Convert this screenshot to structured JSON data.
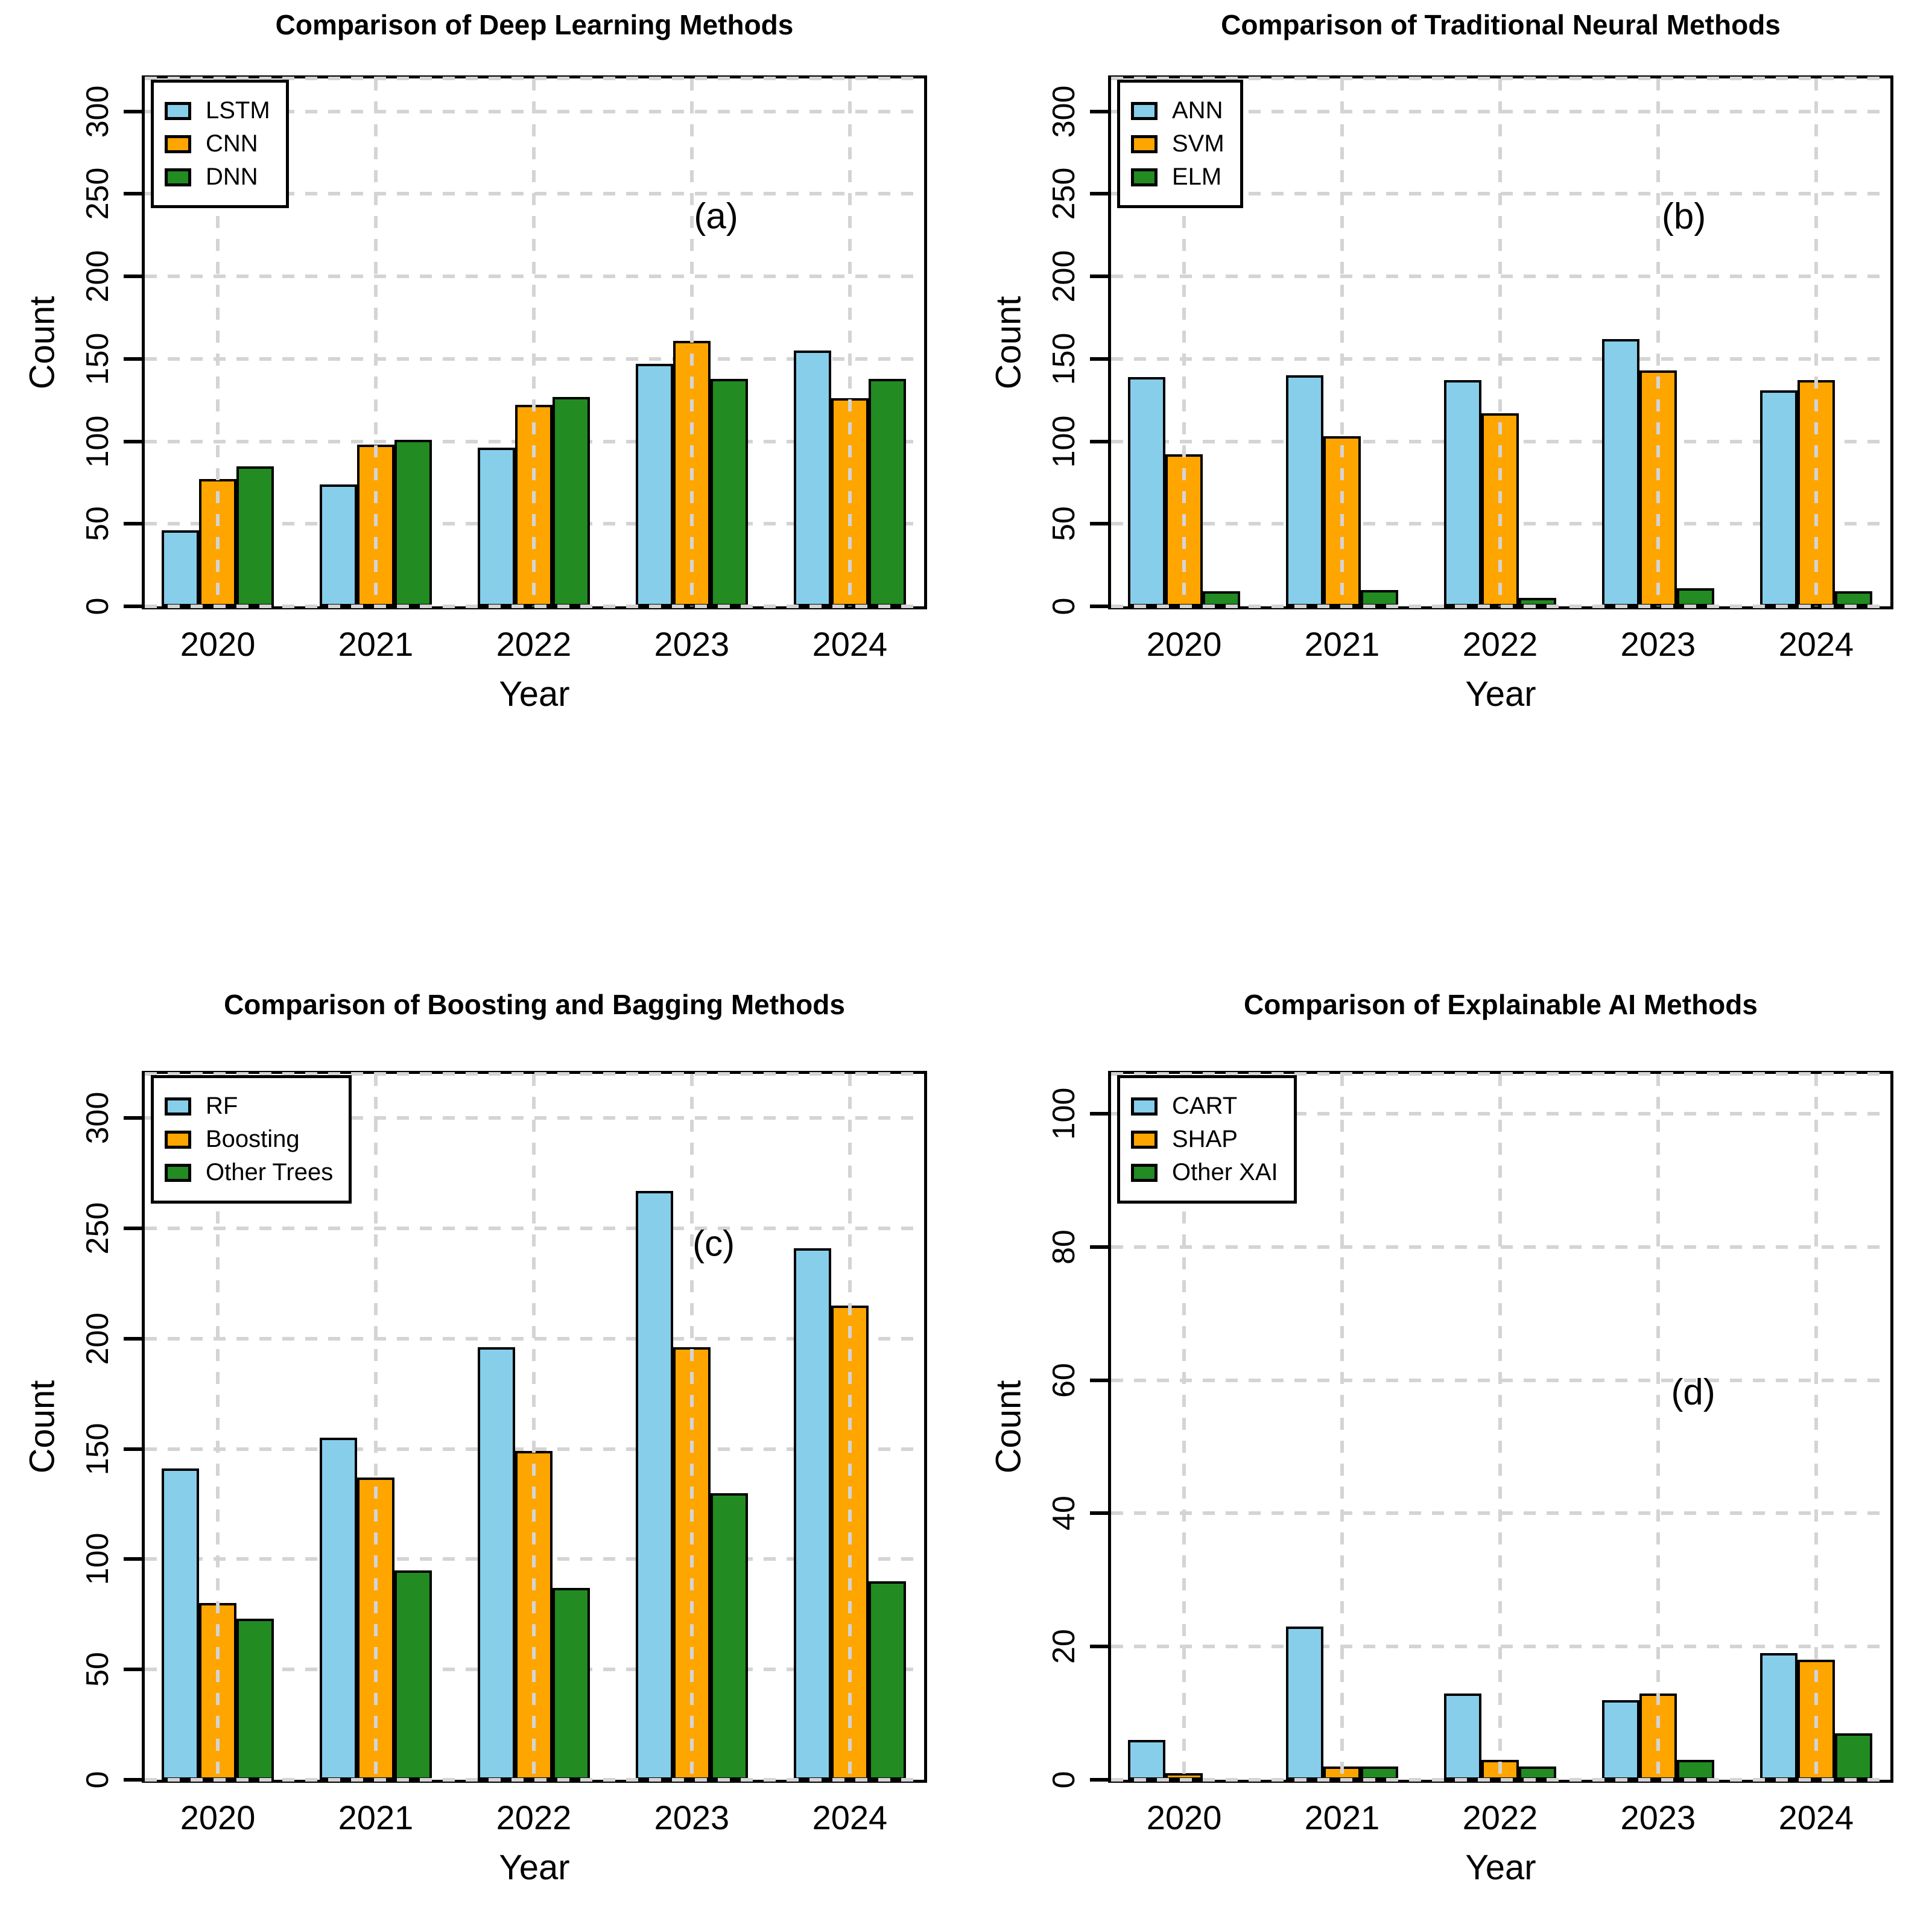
{
  "figure": {
    "background": "#ffffff",
    "grid_color": "#d4d4d4",
    "bar_border_color": "#000000",
    "series_colors": [
      "#87CEEB",
      "#FFA500",
      "#228B22"
    ]
  },
  "chart_data": [
    {
      "type": "bar",
      "panel_label": "(a)",
      "title": "Comparison of Deep Learning Methods",
      "xlabel": "Year",
      "ylabel": "Count",
      "ylim": [
        0,
        300
      ],
      "ymax_display": 320,
      "yticks": [
        0,
        50,
        100,
        150,
        200,
        250,
        300
      ],
      "grid": true,
      "legend_position": "top-left",
      "categories": [
        "2020",
        "2021",
        "2022",
        "2023",
        "2024"
      ],
      "series": [
        {
          "name": "LSTM",
          "color": "#87CEEB",
          "values": [
            46,
            74,
            96,
            147,
            155
          ]
        },
        {
          "name": "CNN",
          "color": "#FFA500",
          "values": [
            77,
            98,
            122,
            161,
            126
          ]
        },
        {
          "name": "DNN",
          "color": "#228B22",
          "values": [
            85,
            101,
            127,
            138,
            138
          ]
        }
      ],
      "letter_pos": {
        "x_frac": 0.733,
        "y_frac": 0.26
      }
    },
    {
      "type": "bar",
      "panel_label": "(b)",
      "title": "Comparison of Traditional Neural Methods",
      "xlabel": "Year",
      "ylabel": "Count",
      "ylim": [
        0,
        300
      ],
      "ymax_display": 320,
      "yticks": [
        0,
        50,
        100,
        150,
        200,
        250,
        300
      ],
      "grid": true,
      "legend_position": "top-left",
      "categories": [
        "2020",
        "2021",
        "2022",
        "2023",
        "2024"
      ],
      "series": [
        {
          "name": "ANN",
          "color": "#87CEEB",
          "values": [
            139,
            140,
            137,
            162,
            131
          ]
        },
        {
          "name": "SVM",
          "color": "#FFA500",
          "values": [
            92,
            103,
            117,
            143,
            137
          ]
        },
        {
          "name": "ELM",
          "color": "#228B22",
          "values": [
            9,
            10,
            5,
            11,
            9
          ]
        }
      ],
      "letter_pos": {
        "x_frac": 0.735,
        "y_frac": 0.26
      }
    },
    {
      "type": "bar",
      "panel_label": "(c)",
      "title": "Comparison of Boosting and Bagging Methods",
      "xlabel": "Year",
      "ylabel": "Count",
      "ylim": [
        0,
        300
      ],
      "ymax_display": 320,
      "yticks": [
        0,
        50,
        100,
        150,
        200,
        250,
        300
      ],
      "grid": true,
      "legend_position": "top-left",
      "categories": [
        "2020",
        "2021",
        "2022",
        "2023",
        "2024"
      ],
      "series": [
        {
          "name": "RF",
          "color": "#87CEEB",
          "values": [
            141,
            155,
            196,
            267,
            241
          ]
        },
        {
          "name": "Boosting",
          "color": "#FFA500",
          "values": [
            80,
            137,
            149,
            196,
            215
          ]
        },
        {
          "name": "Other Trees",
          "color": "#228B22",
          "values": [
            73,
            95,
            87,
            130,
            90
          ]
        }
      ],
      "letter_pos": {
        "x_frac": 0.73,
        "y_frac": 0.24
      }
    },
    {
      "type": "bar",
      "panel_label": "(d)",
      "title": "Comparison of Explainable AI Methods",
      "xlabel": "Year",
      "ylabel": "Count",
      "ylim": [
        0,
        100
      ],
      "ymax_display": 106,
      "yticks": [
        0,
        20,
        40,
        60,
        80,
        100
      ],
      "grid": true,
      "legend_position": "top-left",
      "categories": [
        "2020",
        "2021",
        "2022",
        "2023",
        "2024"
      ],
      "series": [
        {
          "name": "CART",
          "color": "#87CEEB",
          "values": [
            6,
            23,
            13,
            12,
            19
          ]
        },
        {
          "name": "SHAP",
          "color": "#FFA500",
          "values": [
            1,
            2,
            3,
            13,
            18
          ]
        },
        {
          "name": "Other XAI",
          "color": "#228B22",
          "values": [
            0,
            2,
            2,
            3,
            7
          ]
        }
      ],
      "letter_pos": {
        "x_frac": 0.747,
        "y_frac": 0.45
      }
    }
  ]
}
